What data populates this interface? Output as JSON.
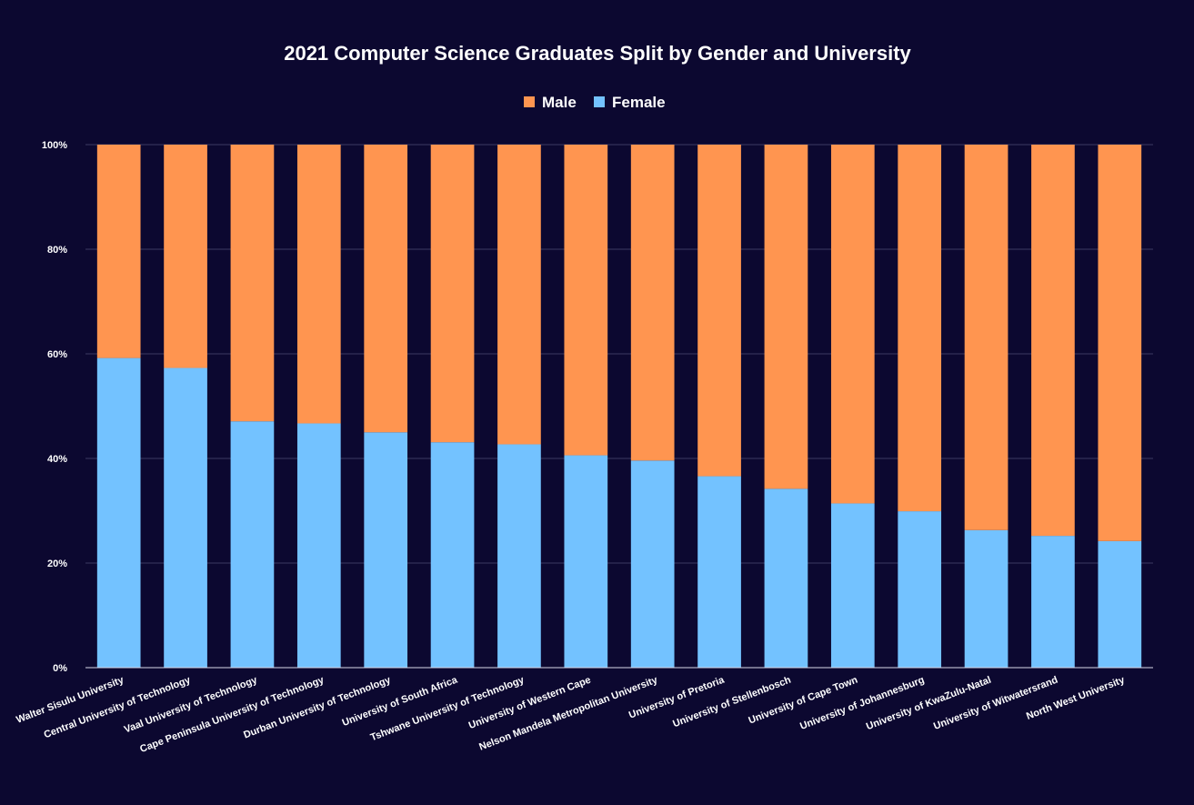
{
  "chart_data": {
    "type": "bar",
    "stacked": true,
    "normalized": true,
    "title": "2021 Computer Science Graduates Split by Gender and University",
    "xlabel": "",
    "ylabel": "",
    "ylim": [
      0,
      100
    ],
    "yticks": [
      "0%",
      "20%",
      "40%",
      "60%",
      "80%",
      "100%"
    ],
    "legend_position": "top",
    "grid": true,
    "categories": [
      "Walter Sisulu University",
      "Central University of Technology",
      "Vaal University of Technology",
      "Cape Peninsula University of Technology",
      "Durban University of Technology",
      "University of South Africa",
      "Tshwane University of Technology",
      "University of Western Cape",
      "Nelson Mandela Metropolitan University",
      "University of Pretoria",
      "University of Stellenbosch",
      "University of Cape Town",
      "University of Johannesburg",
      "University of KwaZulu-Natal",
      "University of Witwatersrand",
      "North West University"
    ],
    "series": [
      {
        "name": "Male",
        "color": "#ff9550",
        "values": [
          40.8,
          42.7,
          52.9,
          53.3,
          55.0,
          56.9,
          57.3,
          59.4,
          60.4,
          63.4,
          65.8,
          68.6,
          70.1,
          73.7,
          74.8,
          75.8
        ]
      },
      {
        "name": "Female",
        "color": "#73c2ff",
        "values": [
          59.2,
          57.3,
          47.1,
          46.7,
          45.0,
          43.1,
          42.7,
          40.6,
          39.6,
          36.6,
          34.2,
          31.4,
          29.9,
          26.3,
          25.2,
          24.2
        ]
      }
    ],
    "legend": [
      "Male",
      "Female"
    ]
  },
  "colors": {
    "background": "#0c0830",
    "grid": "#3c3a62",
    "text": "#ffffff"
  }
}
